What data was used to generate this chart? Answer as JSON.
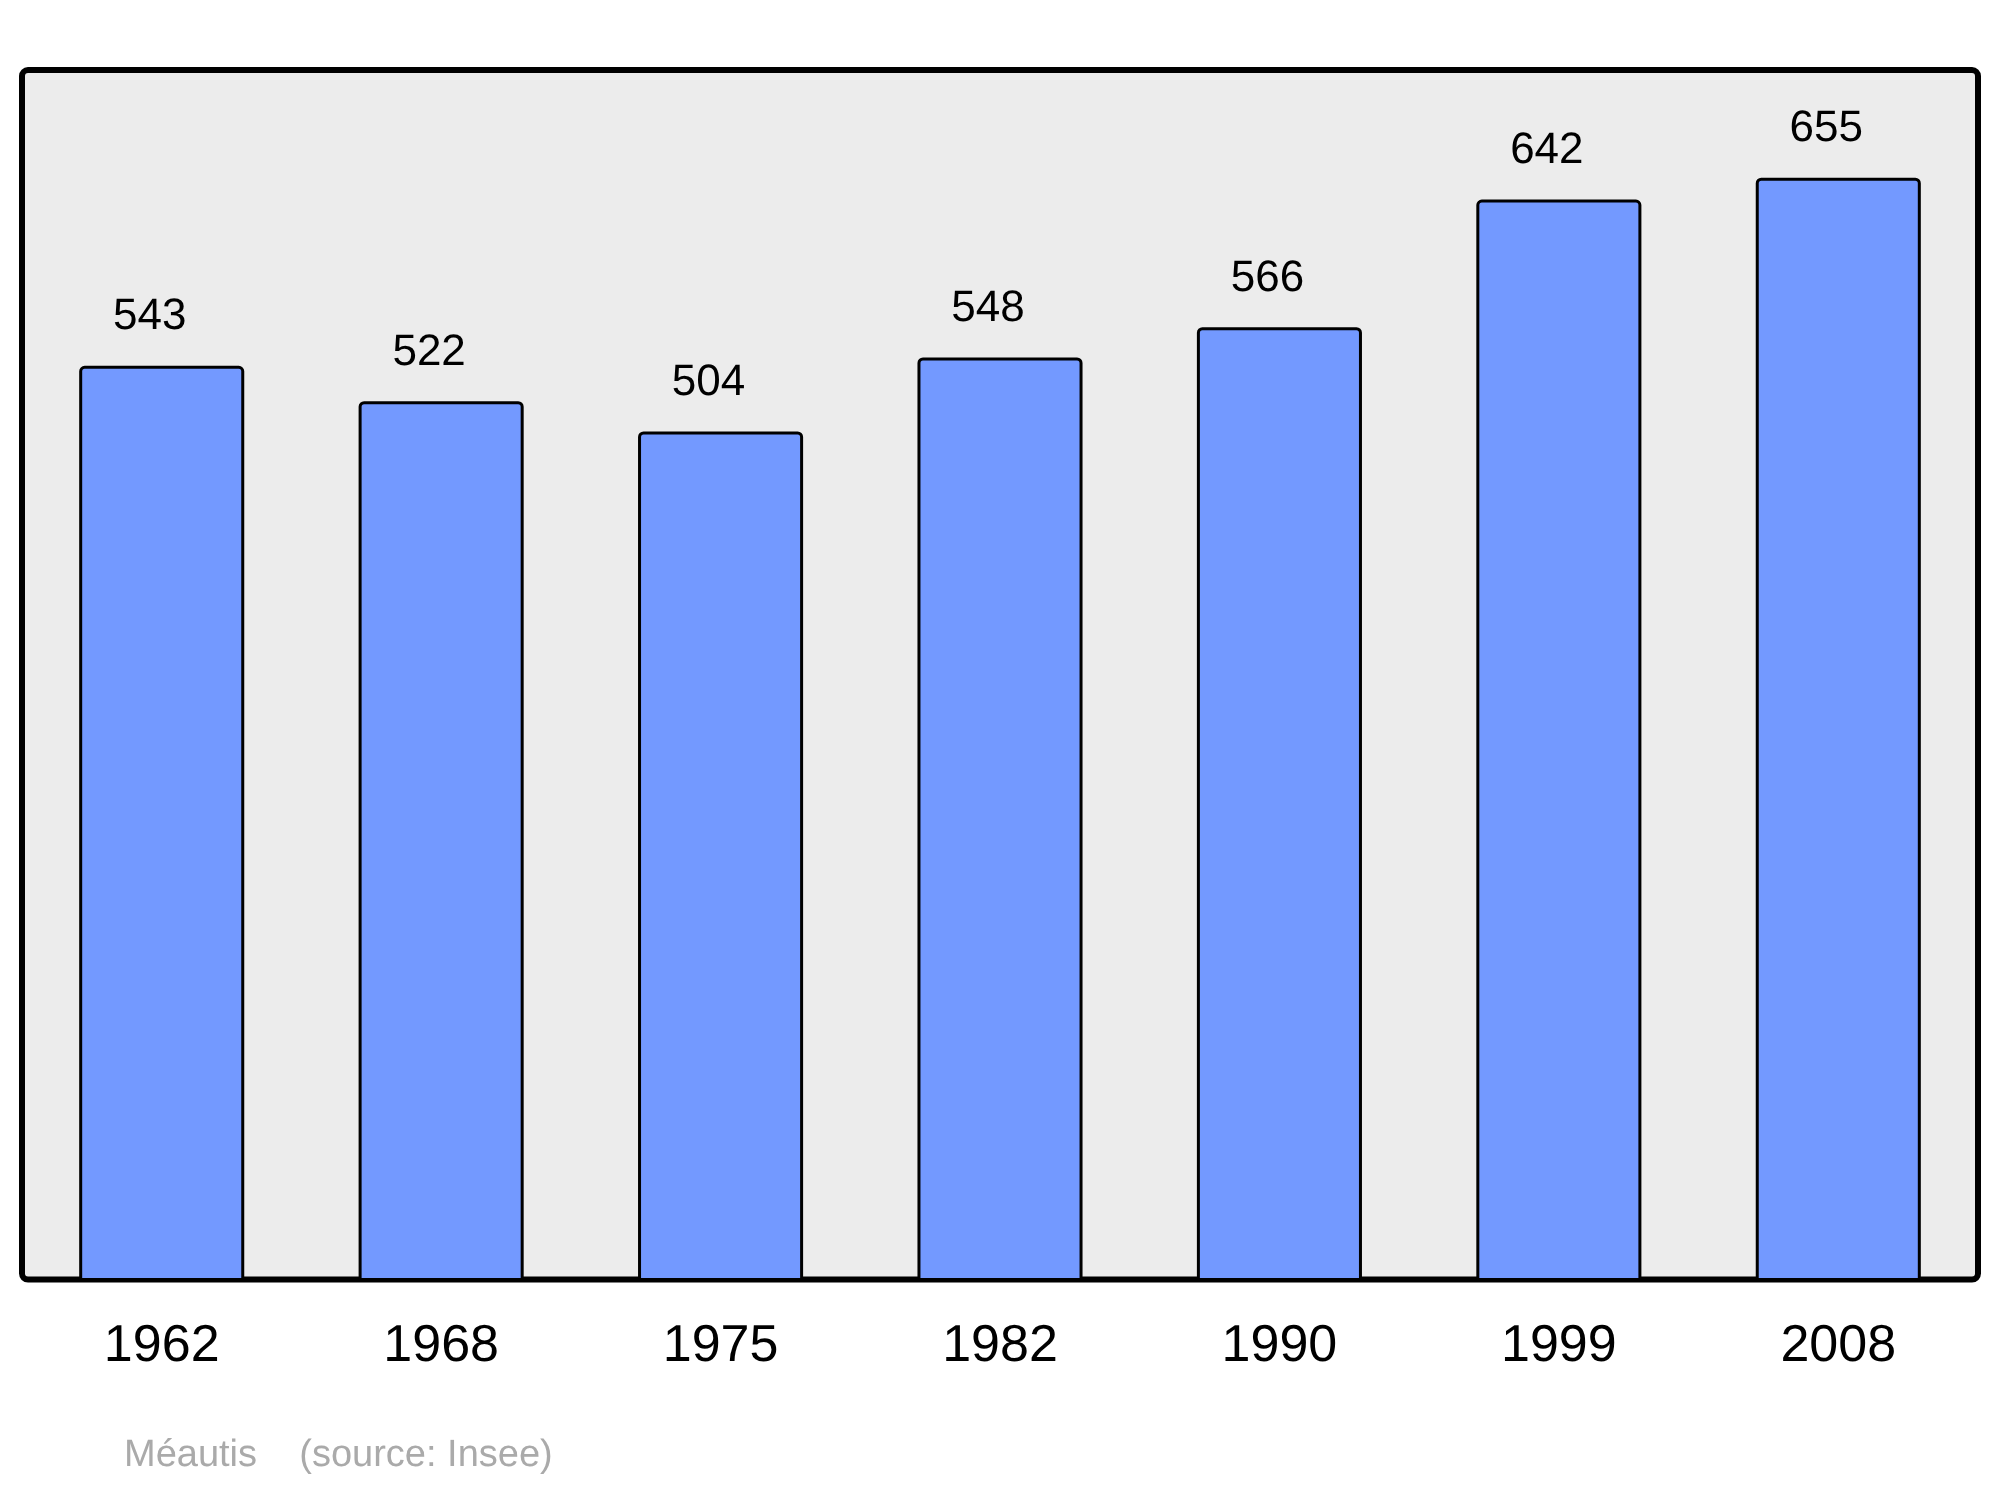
{
  "chart_data": {
    "type": "bar",
    "categories": [
      "1962",
      "1968",
      "1975",
      "1982",
      "1990",
      "1999",
      "2008"
    ],
    "values": [
      543,
      522,
      504,
      548,
      566,
      642,
      655
    ],
    "color": "#7399ff",
    "ylim": [
      0,
      720
    ],
    "data_labels": true,
    "grid": false,
    "legend": false,
    "annotations": [
      "Méautis    (source: Insee)"
    ]
  }
}
